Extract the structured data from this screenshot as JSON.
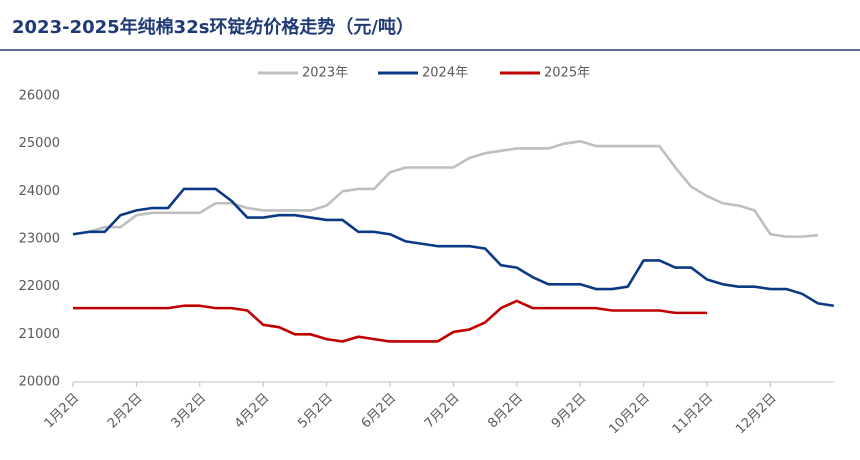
{
  "chart_data": {
    "type": "line",
    "title": "2023-2025年纯棉32s环锭纺价格走势（元/吨）",
    "categories": [
      "1月2日",
      null,
      null,
      null,
      "2月2日",
      null,
      null,
      null,
      "3月2日",
      null,
      null,
      null,
      "4月2日",
      null,
      null,
      null,
      "5月2日",
      null,
      null,
      null,
      "6月2日",
      null,
      null,
      null,
      "7月2日",
      null,
      null,
      null,
      "8月2日",
      null,
      null,
      null,
      "9月2日",
      null,
      null,
      null,
      "10月2日",
      null,
      null,
      null,
      "11月2日",
      null,
      null,
      null,
      "12月2日",
      null,
      null,
      null,
      null
    ],
    "series": [
      {
        "name": "2023年",
        "color": "#bfbfbf",
        "values": [
          23100,
          23150,
          23250,
          23250,
          23500,
          23550,
          23550,
          23550,
          23550,
          23750,
          23750,
          23650,
          23600,
          23600,
          23600,
          23600,
          23700,
          24000,
          24050,
          24050,
          24400,
          24500,
          24500,
          24500,
          24500,
          24700,
          24800,
          24850,
          24900,
          24900,
          24900,
          25000,
          25050,
          24950,
          24950,
          24950,
          24950,
          24950,
          24500,
          24100,
          23900,
          23750,
          23700,
          23600,
          23100,
          23050,
          23050,
          23080,
          null
        ]
      },
      {
        "name": "2024年",
        "color": "#0b3a84",
        "values": [
          23100,
          23150,
          23150,
          23500,
          23600,
          23650,
          23650,
          24050,
          24050,
          24050,
          23800,
          23450,
          23450,
          23500,
          23500,
          23450,
          23400,
          23400,
          23150,
          23150,
          23100,
          22950,
          22900,
          22850,
          22850,
          22850,
          22800,
          22450,
          22400,
          22200,
          22050,
          22050,
          22050,
          21950,
          21950,
          22000,
          22550,
          22550,
          22400,
          22400,
          22150,
          22050,
          22000,
          22000,
          21950,
          21950,
          21850,
          21650,
          21600
        ]
      },
      {
        "name": "2025年",
        "color": "#c00000",
        "values": [
          21550,
          21550,
          21550,
          21550,
          21550,
          21550,
          21550,
          21600,
          21600,
          21550,
          21550,
          21500,
          21200,
          21150,
          21000,
          21000,
          20900,
          20850,
          20950,
          20900,
          20850,
          20850,
          20850,
          20850,
          21050,
          21100,
          21250,
          21550,
          21700,
          21550,
          21550,
          21550,
          21550,
          21550,
          21500,
          21500,
          21500,
          21500,
          21450,
          21450,
          21450,
          null,
          null,
          null,
          null,
          null,
          null,
          null,
          null
        ]
      }
    ],
    "ylim": [
      20000,
      26000
    ],
    "yticks": [
      20000,
      21000,
      22000,
      23000,
      24000,
      25000,
      26000
    ],
    "grid": false
  }
}
